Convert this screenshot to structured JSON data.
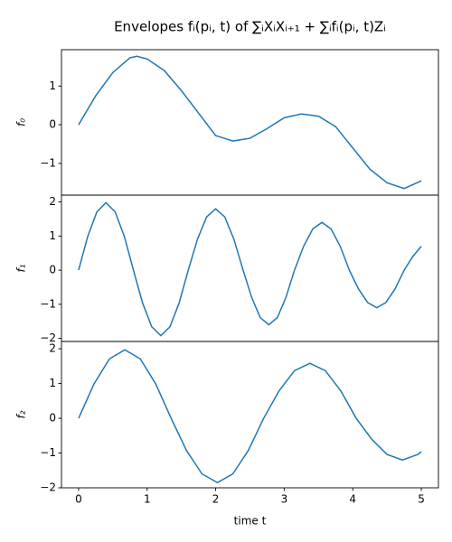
{
  "chart_data": [
    {
      "type": "line",
      "title": "Envelopes fᵢ(pᵢ, t) of ∑ᵢXᵢXᵢ₊₁ + ∑ᵢfᵢ(pᵢ, t)Zᵢ",
      "ylabel": "f₀",
      "color": "#1f77b4",
      "x": [
        0,
        0.25,
        0.5,
        0.75,
        0.85,
        1.0,
        1.25,
        1.5,
        1.75,
        2.0,
        2.25,
        2.5,
        2.75,
        3.0,
        3.25,
        3.5,
        3.75,
        4.0,
        4.25,
        4.5,
        4.75,
        5.0
      ],
      "values": [
        0,
        0.75,
        1.35,
        1.73,
        1.77,
        1.7,
        1.4,
        0.88,
        0.3,
        -0.28,
        -0.42,
        -0.35,
        -0.1,
        0.18,
        0.28,
        0.22,
        -0.05,
        -0.6,
        -1.15,
        -1.5,
        -1.65,
        -1.45
      ],
      "xlim": [
        -0.25,
        5.25
      ],
      "ylim": [
        -1.82,
        1.94
      ],
      "yticks": [
        {
          "value": -1,
          "label": "−1"
        },
        0,
        1
      ]
    },
    {
      "type": "line",
      "ylabel": "f₁",
      "color": "#1f77b4",
      "x": [
        0,
        0.133,
        0.267,
        0.4,
        0.533,
        0.667,
        0.8,
        0.933,
        1.067,
        1.2,
        1.333,
        1.467,
        1.6,
        1.733,
        1.867,
        2.0,
        2.133,
        2.267,
        2.4,
        2.525,
        2.65,
        2.775,
        2.9,
        3.025,
        3.15,
        3.283,
        3.417,
        3.55,
        3.683,
        3.817,
        3.95,
        4.083,
        4.217,
        4.35,
        4.483,
        4.617,
        4.75,
        4.875,
        5.0
      ],
      "values": [
        0,
        0.99,
        1.71,
        1.98,
        1.71,
        0.99,
        0,
        -0.96,
        -1.66,
        -1.92,
        -1.66,
        -0.96,
        0,
        0.9,
        1.56,
        1.8,
        1.56,
        0.9,
        0,
        -0.8,
        -1.39,
        -1.6,
        -1.39,
        -0.8,
        0,
        0.7,
        1.21,
        1.4,
        1.21,
        0.7,
        0,
        -0.55,
        -0.95,
        -1.1,
        -0.95,
        -0.55,
        0,
        0.4,
        0.7
      ],
      "xlim": [
        -0.25,
        5.25
      ],
      "ylim": [
        -2.09,
        2.2
      ],
      "yticks": [
        {
          "value": -2,
          "label": "−2"
        },
        {
          "value": -1,
          "label": "−1"
        },
        0,
        1,
        2
      ]
    },
    {
      "type": "line",
      "ylabel": "f₂",
      "xlabel": "time t",
      "color": "#1f77b4",
      "x": [
        0,
        0.225,
        0.45,
        0.675,
        0.9,
        1.125,
        1.35,
        1.575,
        1.8,
        2.025,
        2.25,
        2.475,
        2.7,
        2.925,
        3.15,
        3.375,
        3.6,
        3.825,
        4.05,
        4.275,
        4.5,
        4.725,
        4.95,
        5.0
      ],
      "values": [
        0,
        0.99,
        1.71,
        1.97,
        1.71,
        0.99,
        0,
        -0.93,
        -1.6,
        -1.85,
        -1.6,
        -0.93,
        0,
        0.79,
        1.37,
        1.58,
        1.37,
        0.79,
        0,
        -0.6,
        -1.04,
        -1.2,
        -1.04,
        -0.96
      ],
      "xlim": [
        -0.25,
        5.25
      ],
      "ylim": [
        -2.0,
        2.21
      ],
      "xticks": [
        0,
        1,
        2,
        3,
        4,
        5
      ],
      "yticks": [
        {
          "value": -2,
          "label": "−2"
        },
        {
          "value": -1,
          "label": "−1"
        },
        0,
        1,
        2
      ]
    }
  ]
}
